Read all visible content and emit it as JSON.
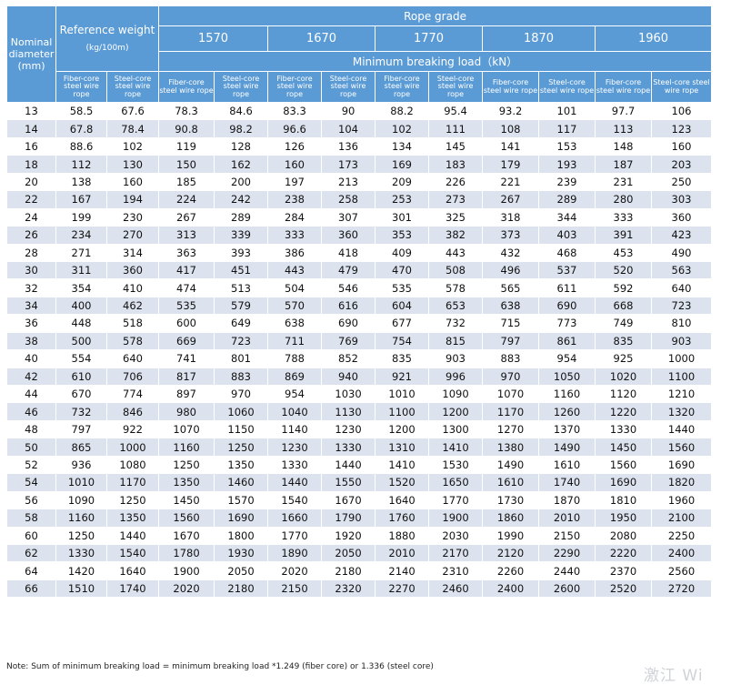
{
  "header": {
    "nominal_diameter": "Nominal diameter (mm)",
    "reference_weight": "Reference weight",
    "reference_weight_unit": "(kg/100m)",
    "rope_grade": "Rope grade",
    "grades": [
      "1570",
      "1670",
      "1770",
      "1870",
      "1960"
    ],
    "min_breaking_load": "Minimum breaking load（kN）",
    "fiber_core": "Fiber-core steel wire rope",
    "steel_core": "Steel-core steel wire rope"
  },
  "rows": [
    [
      "13",
      "58.5",
      "67.6",
      "78.3",
      "84.6",
      "83.3",
      "90",
      "88.2",
      "95.4",
      "93.2",
      "101",
      "97.7",
      "106"
    ],
    [
      "14",
      "67.8",
      "78.4",
      "90.8",
      "98.2",
      "96.6",
      "104",
      "102",
      "111",
      "108",
      "117",
      "113",
      "123"
    ],
    [
      "16",
      "88.6",
      "102",
      "119",
      "128",
      "126",
      "136",
      "134",
      "145",
      "141",
      "153",
      "148",
      "160"
    ],
    [
      "18",
      "112",
      "130",
      "150",
      "162",
      "160",
      "173",
      "169",
      "183",
      "179",
      "193",
      "187",
      "203"
    ],
    [
      "20",
      "138",
      "160",
      "185",
      "200",
      "197",
      "213",
      "209",
      "226",
      "221",
      "239",
      "231",
      "250"
    ],
    [
      "22",
      "167",
      "194",
      "224",
      "242",
      "238",
      "258",
      "253",
      "273",
      "267",
      "289",
      "280",
      "303"
    ],
    [
      "24",
      "199",
      "230",
      "267",
      "289",
      "284",
      "307",
      "301",
      "325",
      "318",
      "344",
      "333",
      "360"
    ],
    [
      "26",
      "234",
      "270",
      "313",
      "339",
      "333",
      "360",
      "353",
      "382",
      "373",
      "403",
      "391",
      "423"
    ],
    [
      "28",
      "271",
      "314",
      "363",
      "393",
      "386",
      "418",
      "409",
      "443",
      "432",
      "468",
      "453",
      "490"
    ],
    [
      "30",
      "311",
      "360",
      "417",
      "451",
      "443",
      "479",
      "470",
      "508",
      "496",
      "537",
      "520",
      "563"
    ],
    [
      "32",
      "354",
      "410",
      "474",
      "513",
      "504",
      "546",
      "535",
      "578",
      "565",
      "611",
      "592",
      "640"
    ],
    [
      "34",
      "400",
      "462",
      "535",
      "579",
      "570",
      "616",
      "604",
      "653",
      "638",
      "690",
      "668",
      "723"
    ],
    [
      "36",
      "448",
      "518",
      "600",
      "649",
      "638",
      "690",
      "677",
      "732",
      "715",
      "773",
      "749",
      "810"
    ],
    [
      "38",
      "500",
      "578",
      "669",
      "723",
      "711",
      "769",
      "754",
      "815",
      "797",
      "861",
      "835",
      "903"
    ],
    [
      "40",
      "554",
      "640",
      "741",
      "801",
      "788",
      "852",
      "835",
      "903",
      "883",
      "954",
      "925",
      "1000"
    ],
    [
      "42",
      "610",
      "706",
      "817",
      "883",
      "869",
      "940",
      "921",
      "996",
      "970",
      "1050",
      "1020",
      "1100"
    ],
    [
      "44",
      "670",
      "774",
      "897",
      "970",
      "954",
      "1030",
      "1010",
      "1090",
      "1070",
      "1160",
      "1120",
      "1210"
    ],
    [
      "46",
      "732",
      "846",
      "980",
      "1060",
      "1040",
      "1130",
      "1100",
      "1200",
      "1170",
      "1260",
      "1220",
      "1320"
    ],
    [
      "48",
      "797",
      "922",
      "1070",
      "1150",
      "1140",
      "1230",
      "1200",
      "1300",
      "1270",
      "1370",
      "1330",
      "1440"
    ],
    [
      "50",
      "865",
      "1000",
      "1160",
      "1250",
      "1230",
      "1330",
      "1310",
      "1410",
      "1380",
      "1490",
      "1450",
      "1560"
    ],
    [
      "52",
      "936",
      "1080",
      "1250",
      "1350",
      "1330",
      "1440",
      "1410",
      "1530",
      "1490",
      "1610",
      "1560",
      "1690"
    ],
    [
      "54",
      "1010",
      "1170",
      "1350",
      "1460",
      "1440",
      "1550",
      "1520",
      "1650",
      "1610",
      "1740",
      "1690",
      "1820"
    ],
    [
      "56",
      "1090",
      "1250",
      "1450",
      "1570",
      "1540",
      "1670",
      "1640",
      "1770",
      "1730",
      "1870",
      "1810",
      "1960"
    ],
    [
      "58",
      "1160",
      "1350",
      "1560",
      "1690",
      "1660",
      "1790",
      "1760",
      "1900",
      "1860",
      "2010",
      "1950",
      "2100"
    ],
    [
      "60",
      "1250",
      "1440",
      "1670",
      "1800",
      "1770",
      "1920",
      "1880",
      "2030",
      "1990",
      "2150",
      "2080",
      "2250"
    ],
    [
      "62",
      "1330",
      "1540",
      "1780",
      "1930",
      "1890",
      "2050",
      "2010",
      "2170",
      "2120",
      "2290",
      "2220",
      "2400"
    ],
    [
      "64",
      "1420",
      "1640",
      "1900",
      "2050",
      "2020",
      "2180",
      "2140",
      "2310",
      "2260",
      "2440",
      "2370",
      "2560"
    ],
    [
      "66",
      "1510",
      "1740",
      "2020",
      "2180",
      "2150",
      "2320",
      "2270",
      "2460",
      "2400",
      "2600",
      "2520",
      "2720"
    ]
  ],
  "note": "Note: Sum of minimum breaking load = minimum breaking load *1.249 (fiber core) or 1.336 (steel core)",
  "watermark": "激江 Wi"
}
